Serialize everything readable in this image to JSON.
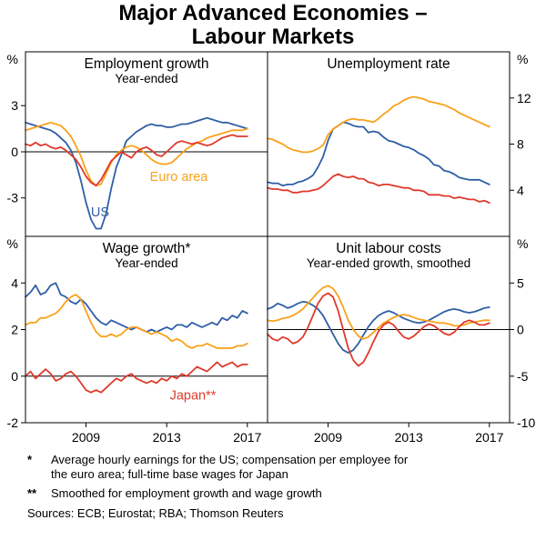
{
  "title": {
    "line1": "Major Advanced Economies –",
    "line2": "Labour Markets"
  },
  "footnotes": [
    {
      "marker": "*",
      "text": "Average hourly earnings for the US; compensation per employee for the euro area; full-time base wages for Japan"
    },
    {
      "marker": "**",
      "text": "Smoothed for employment growth and wage growth"
    }
  ],
  "sources": "Sources: ECB; Eurostat; RBA; Thomson Reuters",
  "colors": {
    "us": "#2f5fa5",
    "euro_area": "#f9a11b",
    "japan": "#df3a2b"
  },
  "chart_data": {
    "type": "line",
    "unit": "%",
    "x_start": 2006.0,
    "x_step": 0.25,
    "xlim": [
      2006,
      2018
    ],
    "x_tick_values": [
      2009,
      2013,
      2017
    ],
    "x_tick_labels": [
      "2009",
      "2013",
      "2017"
    ],
    "series_names": [
      "US",
      "Euro area",
      "Japan"
    ],
    "panels": [
      {
        "title": "Employment growth",
        "subtitle": "Year-ended",
        "axis_side": "left",
        "ylim": [
          -5.5,
          6.5
        ],
        "yticks": [
          3,
          0,
          -3
        ],
        "zero_line": true,
        "series": [
          {
            "name": "US",
            "color_key": "us",
            "values": [
              1.9,
              1.8,
              1.7,
              1.6,
              1.5,
              1.4,
              1.2,
              0.9,
              0.6,
              0.1,
              -0.7,
              -1.9,
              -3.3,
              -4.4,
              -5.0,
              -5.0,
              -4.0,
              -2.4,
              -1.0,
              -0.2,
              0.7,
              1.0,
              1.3,
              1.5,
              1.7,
              1.8,
              1.7,
              1.7,
              1.6,
              1.6,
              1.7,
              1.8,
              1.8,
              1.9,
              2.0,
              2.1,
              2.2,
              2.1,
              2.0,
              1.9,
              1.9,
              1.8,
              1.7,
              1.6,
              1.5
            ]
          },
          {
            "name": "Euro area",
            "color_key": "euro_area",
            "values": [
              1.4,
              1.5,
              1.6,
              1.7,
              1.8,
              1.9,
              1.8,
              1.7,
              1.4,
              1.0,
              0.4,
              -0.3,
              -1.2,
              -1.9,
              -2.2,
              -2.1,
              -1.4,
              -0.7,
              -0.2,
              0.1,
              0.3,
              0.4,
              0.3,
              0.1,
              -0.2,
              -0.5,
              -0.7,
              -0.8,
              -0.8,
              -0.7,
              -0.4,
              -0.1,
              0.2,
              0.4,
              0.6,
              0.7,
              0.9,
              1.0,
              1.1,
              1.2,
              1.3,
              1.4,
              1.4,
              1.4,
              1.5
            ]
          },
          {
            "name": "Japan",
            "color_key": "japan",
            "values": [
              0.5,
              0.4,
              0.6,
              0.4,
              0.5,
              0.3,
              0.2,
              0.3,
              0.1,
              -0.2,
              -0.5,
              -1.0,
              -1.6,
              -2.0,
              -2.2,
              -1.8,
              -1.2,
              -0.6,
              -0.3,
              0.0,
              -0.2,
              -0.4,
              0.0,
              0.2,
              0.3,
              0.1,
              -0.2,
              -0.3,
              0.0,
              0.3,
              0.6,
              0.7,
              0.6,
              0.5,
              0.6,
              0.5,
              0.4,
              0.5,
              0.7,
              0.9,
              1.0,
              1.1,
              1.0,
              1.0,
              1.0
            ]
          }
        ],
        "annotations": [
          {
            "text": "Euro area",
            "x": 2013.6,
            "y": -1.9,
            "color_key": "euro_area"
          },
          {
            "text": "US",
            "x": 2009.7,
            "y": -4.2,
            "color_key": "us"
          }
        ]
      },
      {
        "title": "Unemployment rate",
        "axis_side": "right",
        "ylim": [
          0,
          16
        ],
        "yticks": [
          12,
          8,
          4
        ],
        "zero_line": false,
        "series": [
          {
            "name": "US",
            "color_key": "us",
            "values": [
              4.7,
              4.6,
              4.6,
              4.4,
              4.5,
              4.5,
              4.7,
              4.8,
              5.0,
              5.3,
              6.0,
              6.9,
              8.3,
              9.3,
              9.6,
              9.9,
              9.8,
              9.6,
              9.5,
              9.5,
              9.0,
              9.1,
              9.0,
              8.6,
              8.3,
              8.2,
              8.0,
              7.8,
              7.7,
              7.5,
              7.2,
              7.0,
              6.7,
              6.2,
              6.1,
              5.7,
              5.6,
              5.4,
              5.1,
              5.0,
              4.9,
              4.9,
              4.9,
              4.7,
              4.5
            ]
          },
          {
            "name": "Euro area",
            "color_key": "euro_area",
            "values": [
              8.5,
              8.4,
              8.2,
              8.0,
              7.7,
              7.5,
              7.4,
              7.3,
              7.3,
              7.4,
              7.6,
              7.9,
              8.8,
              9.3,
              9.6,
              9.9,
              10.1,
              10.2,
              10.1,
              10.1,
              10.0,
              9.9,
              10.2,
              10.6,
              10.9,
              11.3,
              11.5,
              11.8,
              12.0,
              12.1,
              12.0,
              11.9,
              11.7,
              11.6,
              11.5,
              11.4,
              11.2,
              11.0,
              10.7,
              10.5,
              10.3,
              10.1,
              9.9,
              9.7,
              9.5
            ]
          },
          {
            "name": "Japan",
            "color_key": "japan",
            "values": [
              4.2,
              4.1,
              4.1,
              4.0,
              4.0,
              3.8,
              3.8,
              3.9,
              3.9,
              4.0,
              4.1,
              4.4,
              4.8,
              5.2,
              5.4,
              5.2,
              5.1,
              5.2,
              5.0,
              5.0,
              4.7,
              4.6,
              4.4,
              4.5,
              4.5,
              4.4,
              4.3,
              4.2,
              4.2,
              4.0,
              4.0,
              3.9,
              3.6,
              3.6,
              3.6,
              3.5,
              3.5,
              3.3,
              3.4,
              3.3,
              3.2,
              3.2,
              3.0,
              3.1,
              2.9
            ]
          }
        ],
        "annotations": []
      },
      {
        "title": "Wage growth*",
        "subtitle": "Year-ended",
        "axis_side": "left",
        "ylim": [
          -2,
          6
        ],
        "yticks": [
          4,
          2,
          0,
          -2
        ],
        "zero_line": true,
        "series": [
          {
            "name": "US",
            "color_key": "us",
            "values": [
              3.4,
              3.6,
              3.9,
              3.5,
              3.6,
              3.9,
              4.0,
              3.5,
              3.4,
              3.2,
              3.1,
              3.3,
              3.1,
              2.8,
              2.5,
              2.3,
              2.2,
              2.4,
              2.3,
              2.2,
              2.1,
              2.0,
              2.1,
              2.0,
              1.9,
              2.0,
              1.9,
              2.0,
              2.1,
              2.0,
              2.2,
              2.2,
              2.1,
              2.3,
              2.2,
              2.1,
              2.2,
              2.3,
              2.2,
              2.5,
              2.4,
              2.6,
              2.5,
              2.8,
              2.7
            ]
          },
          {
            "name": "Euro area",
            "color_key": "euro_area",
            "values": [
              2.2,
              2.3,
              2.3,
              2.5,
              2.5,
              2.6,
              2.7,
              2.9,
              3.2,
              3.4,
              3.5,
              3.3,
              2.8,
              2.3,
              1.9,
              1.7,
              1.7,
              1.8,
              1.7,
              1.8,
              2.0,
              2.1,
              2.1,
              2.0,
              1.9,
              1.8,
              1.9,
              1.8,
              1.7,
              1.5,
              1.6,
              1.5,
              1.3,
              1.2,
              1.3,
              1.3,
              1.4,
              1.3,
              1.2,
              1.2,
              1.2,
              1.2,
              1.3,
              1.3,
              1.4
            ]
          },
          {
            "name": "Japan",
            "color_key": "japan",
            "values": [
              0.0,
              0.2,
              -0.1,
              0.1,
              0.3,
              0.1,
              -0.2,
              -0.1,
              0.1,
              0.2,
              0.0,
              -0.3,
              -0.6,
              -0.7,
              -0.6,
              -0.7,
              -0.5,
              -0.3,
              -0.1,
              -0.2,
              0.0,
              0.1,
              -0.1,
              -0.2,
              -0.3,
              -0.2,
              -0.3,
              -0.1,
              -0.2,
              0.0,
              -0.1,
              0.1,
              0.0,
              0.2,
              0.4,
              0.3,
              0.2,
              0.4,
              0.6,
              0.4,
              0.5,
              0.6,
              0.4,
              0.5,
              0.5
            ]
          }
        ],
        "annotations": [
          {
            "text": "Japan**",
            "x": 2014.3,
            "y": -1.0,
            "color_key": "japan"
          }
        ]
      },
      {
        "title": "Unit labour costs",
        "subtitle": "Year-ended growth, smoothed",
        "axis_side": "right",
        "ylim": [
          -10,
          10
        ],
        "yticks": [
          5,
          0,
          -5,
          -10
        ],
        "zero_line": true,
        "series": [
          {
            "name": "US",
            "color_key": "us",
            "values": [
              2.2,
              2.4,
              2.8,
              2.6,
              2.3,
              2.5,
              2.8,
              3.0,
              2.9,
              2.6,
              2.2,
              1.5,
              0.5,
              -0.5,
              -1.5,
              -2.2,
              -2.5,
              -2.2,
              -1.5,
              -0.6,
              0.3,
              1.0,
              1.5,
              1.8,
              2.0,
              1.8,
              1.5,
              1.2,
              1.0,
              0.8,
              0.7,
              0.8,
              1.0,
              1.3,
              1.6,
              1.9,
              2.1,
              2.2,
              2.1,
              1.9,
              1.8,
              1.9,
              2.1,
              2.3,
              2.4
            ]
          },
          {
            "name": "Euro area",
            "color_key": "euro_area",
            "values": [
              1.0,
              0.9,
              1.0,
              1.2,
              1.3,
              1.5,
              1.8,
              2.2,
              2.8,
              3.4,
              4.0,
              4.5,
              4.7,
              4.4,
              3.6,
              2.4,
              1.0,
              0.0,
              -0.7,
              -1.0,
              -0.8,
              -0.3,
              0.2,
              0.7,
              1.0,
              1.3,
              1.5,
              1.6,
              1.5,
              1.3,
              1.1,
              1.0,
              0.9,
              0.8,
              0.7,
              0.7,
              0.6,
              0.4,
              0.4,
              0.5,
              0.7,
              0.8,
              0.9,
              1.0,
              1.0
            ]
          },
          {
            "name": "Japan",
            "color_key": "japan",
            "values": [
              -0.5,
              -1.0,
              -1.2,
              -0.8,
              -1.0,
              -1.5,
              -1.3,
              -0.8,
              0.2,
              1.5,
              2.8,
              3.6,
              3.9,
              3.5,
              2.0,
              0.0,
              -2.0,
              -3.3,
              -3.9,
              -3.5,
              -2.5,
              -1.3,
              -0.2,
              0.5,
              0.8,
              0.5,
              -0.2,
              -0.8,
              -1.0,
              -0.7,
              -0.2,
              0.3,
              0.6,
              0.4,
              0.0,
              -0.4,
              -0.6,
              -0.3,
              0.3,
              0.8,
              1.0,
              0.8,
              0.5,
              0.5,
              0.7
            ]
          }
        ],
        "annotations": []
      }
    ]
  }
}
